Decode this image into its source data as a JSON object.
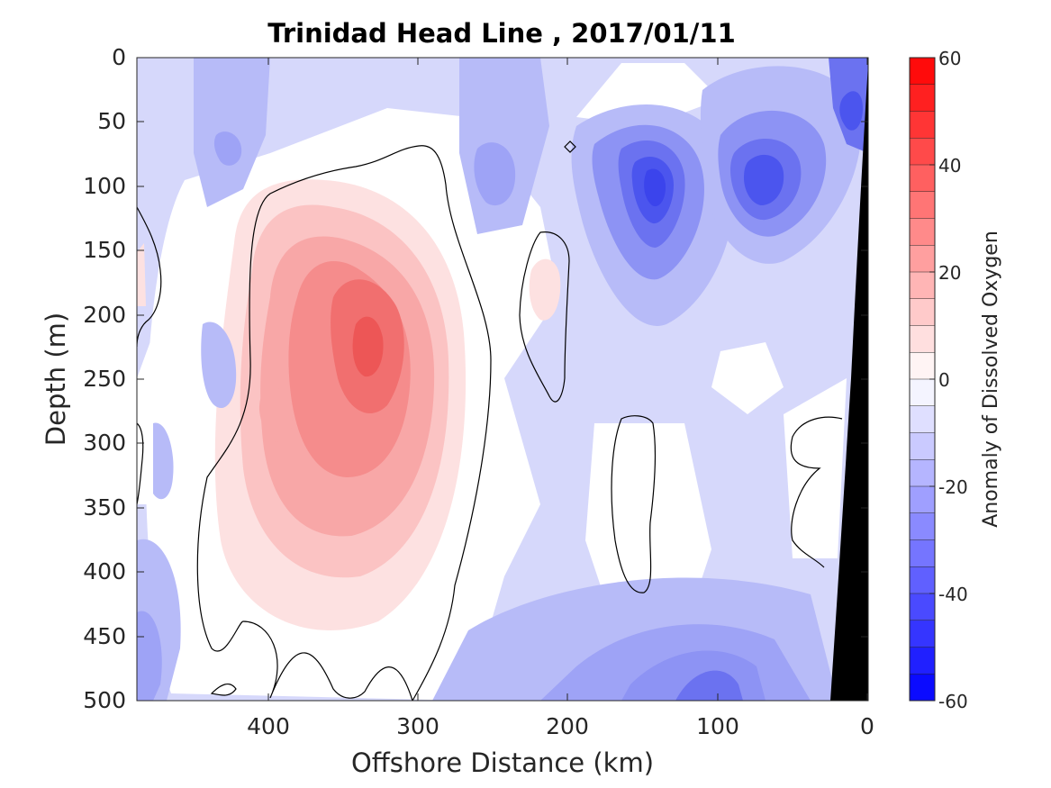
{
  "chart_data": {
    "type": "heatmap",
    "subtype": "filled-contour",
    "title": "Trinidad Head Line , 2017/01/11",
    "xlabel": "Offshore Distance (km)",
    "ylabel": "Depth (m)",
    "xlim": [
      490,
      0
    ],
    "ylim": [
      0,
      500
    ],
    "x_reversed": true,
    "y_reversed": true,
    "x_ticks": [
      400,
      300,
      200,
      100,
      0
    ],
    "y_ticks": [
      0,
      50,
      100,
      150,
      200,
      250,
      300,
      350,
      400,
      450,
      500
    ],
    "x_tick_labels": [
      "400",
      "300",
      "200",
      "100",
      "0"
    ],
    "y_tick_labels": [
      "0",
      "50",
      "100",
      "150",
      "200",
      "250",
      "300",
      "350",
      "400",
      "450",
      "500"
    ],
    "colorbar": {
      "label": "Anomaly of Dissolved Oxygen",
      "range": [
        -60,
        60
      ],
      "step": 5,
      "ticks": [
        60,
        40,
        20,
        0,
        -20,
        -40,
        -60
      ],
      "tick_labels": [
        "60",
        "40",
        "20",
        "0",
        "-20",
        "-40",
        "-60"
      ],
      "low_color": "#0000ff",
      "high_color": "#ff0000",
      "mid_color": "#ffffff"
    },
    "zero_contour_color": "#000000",
    "bathymetry_color": "#000000",
    "features": [
      {
        "type": "positive_core",
        "x": 335,
        "y": 240,
        "value": 37
      },
      {
        "type": "positive_anomaly",
        "x": 360,
        "y": 280,
        "value": 22
      },
      {
        "type": "positive_anomaly",
        "x": 320,
        "y": 400,
        "value": 12
      },
      {
        "type": "positive_small",
        "x": 205,
        "y": 195,
        "value": 8
      },
      {
        "type": "negative_core",
        "x": 140,
        "y": 105,
        "value": -52
      },
      {
        "type": "negative_core",
        "x": 70,
        "y": 100,
        "value": -48
      },
      {
        "type": "negative_core",
        "x": 10,
        "y": 60,
        "value": -50
      },
      {
        "type": "negative_anomaly",
        "x": 420,
        "y": 75,
        "value": -20
      },
      {
        "type": "negative_anomaly",
        "x": 245,
        "y": 90,
        "value": -22
      },
      {
        "type": "negative_anomaly",
        "x": 110,
        "y": 485,
        "value": -40
      },
      {
        "type": "negative_anomaly",
        "x": 470,
        "y": 450,
        "value": -20
      }
    ]
  }
}
